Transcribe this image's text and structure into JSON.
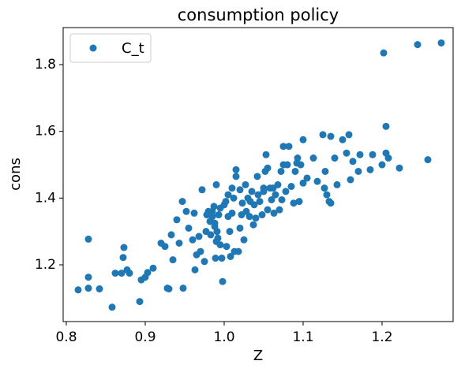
{
  "chart_data": {
    "type": "scatter",
    "title": "consumption policy",
    "x_label": "Z",
    "y_label": "cons",
    "xlim": [
      0.796,
      1.29
    ],
    "ylim": [
      1.03,
      1.911
    ],
    "xticks": [
      0.8,
      0.9,
      {
        "value": 1,
        "label": "1.0"
      },
      1.1,
      1.2
    ],
    "yticks": [
      1.2,
      1.4,
      1.6,
      1.8
    ],
    "legend": "upper left",
    "series": [
      {
        "name": "C_t",
        "color": "#1f77b4",
        "x": [
          0.815,
          0.828,
          0.828,
          0.828,
          0.842,
          0.858,
          0.862,
          0.87,
          0.872,
          0.873,
          0.877,
          0.88,
          0.893,
          0.895,
          0.9,
          0.903,
          0.91,
          0.92,
          0.925,
          0.928,
          0.93,
          0.933,
          0.935,
          0.94,
          0.943,
          0.948,
          0.947,
          0.952,
          0.955,
          0.96,
          0.962,
          0.963,
          0.965,
          0.968,
          0.97,
          0.972,
          0.975,
          0.977,
          0.978,
          0.98,
          0.982,
          0.983,
          0.985,
          0.985,
          0.987,
          0.988,
          0.988,
          0.989,
          0.99,
          0.99,
          0.991,
          0.992,
          0.993,
          0.995,
          0.995,
          0.997,
          0.998,
          1.0,
          1.002,
          1.003,
          1.005,
          1.005,
          1.007,
          1.008,
          1.01,
          1.01,
          1.012,
          1.013,
          1.015,
          1.015,
          1.018,
          1.02,
          1.02,
          1.022,
          1.023,
          1.025,
          1.027,
          1.028,
          1.03,
          1.032,
          1.033,
          1.035,
          1.037,
          1.038,
          1.04,
          1.042,
          1.043,
          1.045,
          1.048,
          1.05,
          1.05,
          1.052,
          1.053,
          1.055,
          1.055,
          1.058,
          1.06,
          1.062,
          1.063,
          1.065,
          1.068,
          1.07,
          1.072,
          1.073,
          1.075,
          1.075,
          1.078,
          1.08,
          1.082,
          1.085,
          1.088,
          1.09,
          1.092,
          1.093,
          1.095,
          1.097,
          1.1,
          1.1,
          1.105,
          1.113,
          1.118,
          1.125,
          1.127,
          1.128,
          1.13,
          1.133,
          1.135,
          1.135,
          1.14,
          1.143,
          1.15,
          1.155,
          1.158,
          1.16,
          1.163,
          1.17,
          1.172,
          1.185,
          1.188,
          1.2,
          1.202,
          1.205,
          1.205,
          1.208,
          1.222,
          1.245,
          1.258,
          1.275
        ],
        "values": [
          1.125,
          1.13,
          1.163,
          1.277,
          1.128,
          1.073,
          1.175,
          1.175,
          1.222,
          1.252,
          1.185,
          1.175,
          1.09,
          1.155,
          1.163,
          1.177,
          1.19,
          1.265,
          1.255,
          1.13,
          1.128,
          1.29,
          1.215,
          1.335,
          1.265,
          1.13,
          1.39,
          1.36,
          1.31,
          1.275,
          1.355,
          1.185,
          1.23,
          1.285,
          1.24,
          1.425,
          1.21,
          1.3,
          1.35,
          1.36,
          1.33,
          1.29,
          1.345,
          1.36,
          1.375,
          1.325,
          1.315,
          1.22,
          1.27,
          1.44,
          1.3,
          1.28,
          1.35,
          1.26,
          1.37,
          1.22,
          1.15,
          1.38,
          1.39,
          1.255,
          1.41,
          1.345,
          1.3,
          1.225,
          1.43,
          1.355,
          1.4,
          1.24,
          1.485,
          1.465,
          1.24,
          1.31,
          1.425,
          1.35,
          1.385,
          1.275,
          1.44,
          1.36,
          1.4,
          1.345,
          1.39,
          1.42,
          1.32,
          1.38,
          1.34,
          1.465,
          1.41,
          1.39,
          1.35,
          1.42,
          1.43,
          1.48,
          1.53,
          1.49,
          1.365,
          1.43,
          1.395,
          1.43,
          1.355,
          1.41,
          1.44,
          1.365,
          1.48,
          1.395,
          1.5,
          1.555,
          1.42,
          1.5,
          1.555,
          1.435,
          1.385,
          1.48,
          1.505,
          1.52,
          1.39,
          1.5,
          1.445,
          1.575,
          1.46,
          1.52,
          1.45,
          1.59,
          1.43,
          1.48,
          1.41,
          1.39,
          1.385,
          1.585,
          1.52,
          1.44,
          1.575,
          1.535,
          1.59,
          1.455,
          1.51,
          1.48,
          1.53,
          1.485,
          1.53,
          1.5,
          1.835,
          1.535,
          1.615,
          1.52,
          1.49,
          1.86,
          1.515,
          1.865
        ]
      }
    ]
  }
}
